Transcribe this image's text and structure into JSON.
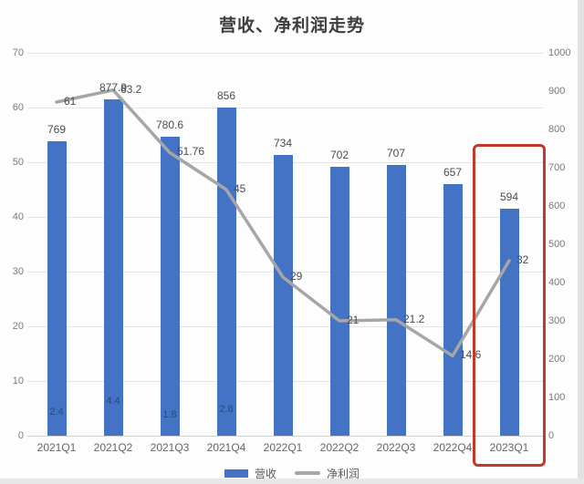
{
  "title": "营收、净利润走势",
  "legend": {
    "items": [
      {
        "label": "营收",
        "marker": "bar",
        "color": "#4472c4"
      },
      {
        "label": "净利润",
        "marker": "line",
        "color": "#a6a6a6"
      }
    ],
    "position": "bottom"
  },
  "colors": {
    "bar": "#4472c4",
    "line": "#a6a6a6",
    "highlight": "#bd3a2c",
    "grid": "#e4e4e4",
    "axis_line": "#cfcfcf",
    "tick_text": "#7a7a7a",
    "value_text": "#4c4c4c",
    "inner_value_text": "#26456b",
    "category_text": "#666666",
    "title_text": "#3d3d3d",
    "legend_text": "#595959"
  },
  "chart_data": {
    "type": "combo-bar-line",
    "title": "营收、净利润走势",
    "categories": [
      "2021Q1",
      "2021Q2",
      "2021Q3",
      "2021Q4",
      "2022Q1",
      "2022Q2",
      "2022Q3",
      "2022Q4",
      "2023Q1"
    ],
    "series": [
      {
        "name": "营收",
        "type": "bar",
        "axis": "right",
        "color": "#4472c4",
        "values": [
          769,
          877.9,
          780.6,
          856,
          734,
          702,
          707,
          657,
          594
        ]
      },
      {
        "name": "净利润",
        "type": "line",
        "axis": "left",
        "color": "#a6a6a6",
        "values": [
          61,
          63.2,
          51.76,
          45,
          29,
          21,
          21.2,
          14.6,
          32
        ]
      }
    ],
    "secondary_inner_labels": [
      2.4,
      4.4,
      1.8,
      2.8,
      null,
      null,
      null,
      null,
      null
    ],
    "left_axis": {
      "min": 0,
      "max": 70,
      "step": 10,
      "tick_labels": [
        "70",
        "60",
        "50",
        "40",
        "30",
        "20",
        "10",
        "0"
      ]
    },
    "right_axis": {
      "min": 0,
      "max": 1000,
      "step": 100,
      "tick_labels": [
        "1000",
        "900",
        "800",
        "700",
        "600",
        "500",
        "400",
        "300",
        "200",
        "100",
        "0"
      ]
    },
    "grid": true,
    "legend_position": "bottom",
    "highlight_box": {
      "category": "2023Q1",
      "color": "#bd3a2c"
    }
  }
}
